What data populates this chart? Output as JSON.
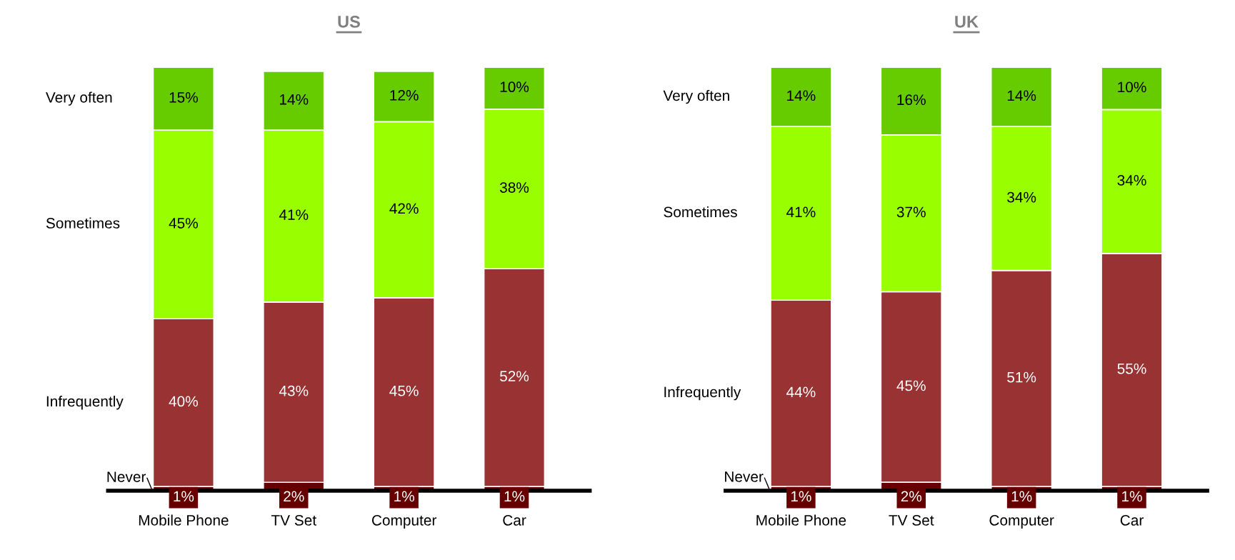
{
  "chart_data": [
    {
      "type": "bar",
      "title": "US",
      "stacked": true,
      "legend": false,
      "tick_labels": "x",
      "categories": [
        "Mobile Phone",
        "TV Set",
        "Computer",
        "Car"
      ],
      "series": [
        {
          "name": "Never",
          "color": "#660000",
          "values": [
            1,
            2,
            1,
            1
          ],
          "value_labels": [
            "1%",
            "2%",
            "1%",
            "1%"
          ]
        },
        {
          "name": "Infrequently",
          "color": "#993333",
          "values": [
            40,
            43,
            45,
            52
          ],
          "value_labels": [
            "40%",
            "43%",
            "45%",
            "52%"
          ]
        },
        {
          "name": "Sometimes",
          "color": "#99ff00",
          "values": [
            45,
            41,
            42,
            38
          ],
          "value_labels": [
            "45%",
            "41%",
            "42%",
            "38%"
          ]
        },
        {
          "name": "Very often",
          "color": "#66cc00",
          "values": [
            15,
            14,
            12,
            10
          ],
          "value_labels": [
            "15%",
            "14%",
            "12%",
            "10%"
          ]
        }
      ]
    },
    {
      "type": "bar",
      "title": "UK",
      "stacked": true,
      "legend": false,
      "tick_labels": "x",
      "categories": [
        "Mobile Phone",
        "TV Set",
        "Computer",
        "Car"
      ],
      "series": [
        {
          "name": "Never",
          "color": "#660000",
          "values": [
            1,
            2,
            1,
            1
          ],
          "value_labels": [
            "1%",
            "2%",
            "1%",
            "1%"
          ]
        },
        {
          "name": "Infrequently",
          "color": "#993333",
          "values": [
            44,
            45,
            51,
            55
          ],
          "value_labels": [
            "44%",
            "45%",
            "51%",
            "55%"
          ]
        },
        {
          "name": "Sometimes",
          "color": "#99ff00",
          "values": [
            41,
            37,
            34,
            34
          ],
          "value_labels": [
            "41%",
            "37%",
            "34%",
            "34%"
          ]
        },
        {
          "name": "Very often",
          "color": "#66cc00",
          "values": [
            14,
            16,
            14,
            10
          ],
          "value_labels": [
            "14%",
            "16%",
            "14%",
            "10%"
          ]
        }
      ]
    }
  ]
}
